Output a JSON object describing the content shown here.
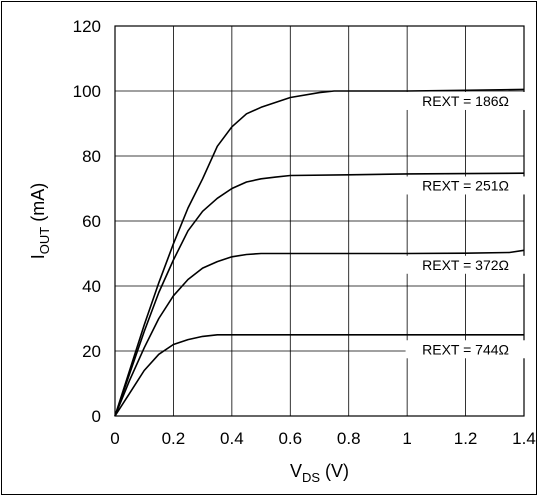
{
  "chart_data": {
    "type": "line",
    "title": "",
    "xlabel": {
      "main": "V",
      "sub": "DS",
      "unit": " (V)"
    },
    "ylabel": {
      "main": "I",
      "sub": "OUT",
      "unit": " (mA)"
    },
    "xlim": [
      0,
      1.4
    ],
    "ylim": [
      0,
      120
    ],
    "x_ticks": [
      0,
      0.2,
      0.4,
      0.6,
      0.8,
      1,
      1.2,
      1.4
    ],
    "x_tick_labels": [
      "0",
      "0.2",
      "0.4",
      "0.6",
      "0.8",
      "1",
      "1.2",
      "1.4"
    ],
    "y_ticks": [
      0,
      20,
      40,
      60,
      80,
      100,
      120
    ],
    "y_tick_labels": [
      "0",
      "20",
      "40",
      "60",
      "80",
      "100",
      "120"
    ],
    "grid": true,
    "legend": "inline labels",
    "series": [
      {
        "name": "REXT = 186Ω",
        "label_at": [
          1.2,
          95.7
        ],
        "x": [
          0,
          0.05,
          0.1,
          0.15,
          0.2,
          0.25,
          0.3,
          0.35,
          0.4,
          0.45,
          0.5,
          0.6,
          0.7,
          0.75,
          0.8,
          1.0,
          1.2,
          1.4
        ],
        "y": [
          0,
          14,
          28,
          41,
          53,
          64,
          73,
          83,
          89,
          93,
          95,
          98,
          99.5,
          100,
          100,
          100,
          100.2,
          100.5
        ]
      },
      {
        "name": "REXT = 251Ω",
        "label_at": [
          1.2,
          69.7
        ],
        "x": [
          0,
          0.05,
          0.1,
          0.15,
          0.2,
          0.25,
          0.3,
          0.35,
          0.4,
          0.45,
          0.5,
          0.55,
          0.6,
          0.8,
          1.0,
          1.2,
          1.4
        ],
        "y": [
          0,
          13,
          26,
          38,
          48,
          57,
          63,
          67,
          70,
          72,
          73,
          73.5,
          74,
          74.2,
          74.5,
          74.6,
          74.7
        ]
      },
      {
        "name": "REXT = 372Ω",
        "label_at": [
          1.2,
          45.3
        ],
        "x": [
          0,
          0.05,
          0.1,
          0.15,
          0.2,
          0.25,
          0.3,
          0.35,
          0.4,
          0.45,
          0.5,
          0.6,
          0.8,
          1.0,
          1.2,
          1.35,
          1.4
        ],
        "y": [
          0,
          11,
          21,
          30,
          37,
          42,
          45.5,
          47.5,
          49,
          49.7,
          50,
          50,
          50,
          50,
          50.1,
          50.3,
          51
        ]
      },
      {
        "name": "REXT = 744Ω",
        "label_at": [
          1.2,
          19.3
        ],
        "x": [
          0,
          0.05,
          0.1,
          0.15,
          0.2,
          0.25,
          0.3,
          0.35,
          0.4,
          0.6,
          0.8,
          1.0,
          1.2,
          1.4
        ],
        "y": [
          0,
          7,
          14,
          19,
          22,
          23.5,
          24.5,
          25,
          25,
          25,
          25,
          25,
          25,
          25
        ]
      }
    ]
  }
}
